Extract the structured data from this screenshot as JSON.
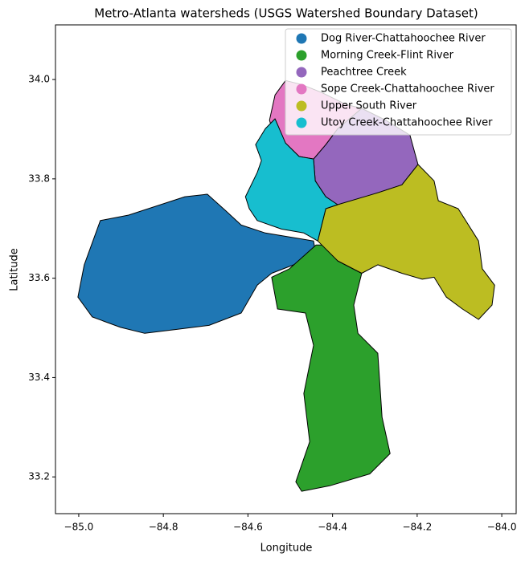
{
  "chart_data": {
    "type": "map",
    "title": "Metro-Atlanta watersheds (USGS Watershed Boundary Dataset)",
    "x_label": "Longitude",
    "y_label": "Latitude",
    "xlim": [
      -85.055,
      -83.966
    ],
    "ylim": [
      33.126,
      34.11
    ],
    "xticks": [
      {
        "value": -85,
        "label": "−85.0"
      },
      {
        "value": -84.8,
        "label": "−84.8"
      },
      {
        "value": -84.6,
        "label": "−84.6"
      },
      {
        "value": -84.4,
        "label": "−84.4"
      },
      {
        "value": -84.2,
        "label": "−84.2"
      },
      {
        "value": -84,
        "label": "−84.0"
      }
    ],
    "yticks": [
      33.2,
      33.4,
      33.6,
      33.8,
      {
        "value": 34,
        "label": "34.0"
      }
    ],
    "legend": "upper right",
    "edge_color": "#000000",
    "series": [
      {
        "name": "Dog River-Chattahoochee River",
        "color": "#1f77b4",
        "lon": [
          -85.002,
          -84.987,
          -84.949,
          -84.882,
          -84.749,
          -84.696,
          -84.654,
          -84.616,
          -84.559,
          -84.502,
          -84.445,
          -84.439,
          -84.483,
          -84.544,
          -84.578,
          -84.616,
          -84.692,
          -84.768,
          -84.844,
          -84.901,
          -84.968
        ],
        "lat": [
          33.562,
          33.627,
          33.716,
          33.727,
          33.764,
          33.769,
          33.737,
          33.707,
          33.691,
          33.683,
          33.675,
          33.646,
          33.63,
          33.61,
          33.586,
          33.53,
          33.505,
          33.497,
          33.489,
          33.501,
          33.522
        ]
      },
      {
        "name": "Morning Creek-Flint River",
        "color": "#2ca02c",
        "lon": [
          -84.544,
          -84.502,
          -84.439,
          -84.416,
          -84.388,
          -84.331,
          -84.35,
          -84.34,
          -84.293,
          -84.283,
          -84.264,
          -84.312,
          -84.407,
          -84.473,
          -84.487,
          -84.454,
          -84.468,
          -84.445,
          -84.464,
          -84.53
        ],
        "lat": [
          33.602,
          33.619,
          33.667,
          33.667,
          33.635,
          33.61,
          33.546,
          33.489,
          33.449,
          33.32,
          33.247,
          33.206,
          33.182,
          33.171,
          33.19,
          33.271,
          33.368,
          33.465,
          33.53,
          33.538
        ]
      },
      {
        "name": "Peachtree Creek",
        "color": "#9467bd",
        "lon": [
          -84.445,
          -84.416,
          -84.388,
          -84.331,
          -84.274,
          -84.217,
          -84.198,
          -84.236,
          -84.293,
          -84.35,
          -84.388,
          -84.416,
          -84.441
        ],
        "lat": [
          33.84,
          33.869,
          33.901,
          33.942,
          33.918,
          33.888,
          33.829,
          33.788,
          33.772,
          33.756,
          33.74,
          33.764,
          33.796
        ]
      },
      {
        "name": "Sope Creek-Chattahoochee River",
        "color": "#e377c2",
        "lon": [
          -84.549,
          -84.536,
          -84.511,
          -84.473,
          -84.426,
          -84.369,
          -84.331,
          -84.388,
          -84.416,
          -84.445,
          -84.479,
          -84.511,
          -84.54
        ],
        "lat": [
          33.918,
          33.969,
          33.998,
          33.99,
          33.974,
          33.95,
          33.942,
          33.901,
          33.869,
          33.84,
          33.845,
          33.872,
          33.893
        ]
      },
      {
        "name": "Upper South River",
        "color": "#bcbd22",
        "lon": [
          -84.416,
          -84.388,
          -84.293,
          -84.236,
          -84.198,
          -84.16,
          -84.15,
          -84.103,
          -84.055,
          -84.046,
          -84.017,
          -84.023,
          -84.055,
          -84.093,
          -84.131,
          -84.16,
          -84.188,
          -84.236,
          -84.293,
          -84.331,
          -84.388,
          -84.435
        ],
        "lat": [
          33.74,
          33.748,
          33.772,
          33.788,
          33.829,
          33.796,
          33.756,
          33.74,
          33.675,
          33.619,
          33.586,
          33.546,
          33.517,
          33.538,
          33.562,
          33.602,
          33.598,
          33.61,
          33.627,
          33.61,
          33.635,
          33.675
        ]
      },
      {
        "name": "Utoy Creek-Chattahoochee River",
        "color": "#17becf",
        "lon": [
          -84.582,
          -84.559,
          -84.536,
          -84.511,
          -84.479,
          -84.445,
          -84.441,
          -84.416,
          -84.388,
          -84.416,
          -84.435,
          -84.468,
          -84.521,
          -84.578,
          -84.597,
          -84.606,
          -84.578,
          -84.568
        ],
        "lat": [
          33.869,
          33.901,
          33.921,
          33.872,
          33.845,
          33.84,
          33.796,
          33.764,
          33.748,
          33.74,
          33.675,
          33.691,
          33.699,
          33.716,
          33.74,
          33.764,
          33.813,
          33.837
        ]
      }
    ]
  }
}
